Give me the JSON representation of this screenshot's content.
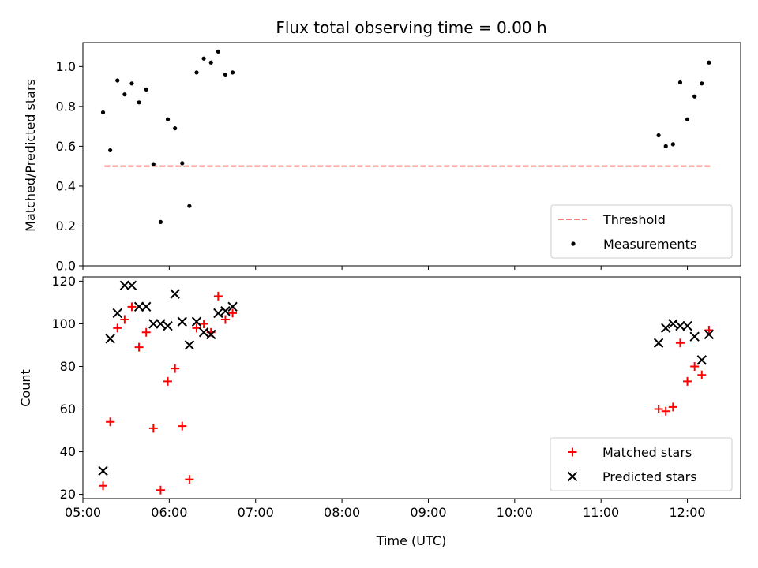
{
  "chart_data": [
    {
      "type": "scatter",
      "title": "Flux total observing time = 0.00 h",
      "xlabel": "",
      "ylabel": "Matched/Predicted stars",
      "ylim": [
        0.0,
        1.12
      ],
      "yticks": [
        0.0,
        0.2,
        0.4,
        0.6,
        0.8,
        1.0
      ],
      "ytick_labels": [
        "0.0",
        "0.2",
        "0.4",
        "0.6",
        "0.8",
        "1.0"
      ],
      "xlim": [
        "05:00",
        "12:37"
      ],
      "legend_location": "lower-right",
      "series": [
        {
          "name": "Threshold",
          "kind": "dashed-line",
          "color": "#ff8080",
          "points": [
            {
              "x": "05:15",
              "y": 0.5
            },
            {
              "x": "12:16",
              "y": 0.5
            }
          ]
        },
        {
          "name": "Measurements",
          "kind": "dot",
          "color": "#000000",
          "points": [
            {
              "x": "05:14",
              "y": 0.77
            },
            {
              "x": "05:19",
              "y": 0.58
            },
            {
              "x": "05:24",
              "y": 0.93
            },
            {
              "x": "05:29",
              "y": 0.86
            },
            {
              "x": "05:34",
              "y": 0.915
            },
            {
              "x": "05:39",
              "y": 0.82
            },
            {
              "x": "05:44",
              "y": 0.885
            },
            {
              "x": "05:49",
              "y": 0.51
            },
            {
              "x": "05:54",
              "y": 0.22
            },
            {
              "x": "05:59",
              "y": 0.735
            },
            {
              "x": "06:04",
              "y": 0.69
            },
            {
              "x": "06:09",
              "y": 0.515
            },
            {
              "x": "06:14",
              "y": 0.3
            },
            {
              "x": "06:19",
              "y": 0.97
            },
            {
              "x": "06:24",
              "y": 1.04
            },
            {
              "x": "06:29",
              "y": 1.02
            },
            {
              "x": "06:34",
              "y": 1.075
            },
            {
              "x": "06:39",
              "y": 0.96
            },
            {
              "x": "06:44",
              "y": 0.97
            },
            {
              "x": "11:40",
              "y": 0.655
            },
            {
              "x": "11:45",
              "y": 0.6
            },
            {
              "x": "11:50",
              "y": 0.61
            },
            {
              "x": "11:55",
              "y": 0.92
            },
            {
              "x": "12:00",
              "y": 0.735
            },
            {
              "x": "12:05",
              "y": 0.85
            },
            {
              "x": "12:10",
              "y": 0.915
            },
            {
              "x": "12:15",
              "y": 1.02
            }
          ]
        }
      ]
    },
    {
      "type": "scatter",
      "title": "",
      "xlabel": "Time (UTC)",
      "ylabel": "Count",
      "ylim": [
        18,
        122
      ],
      "yticks": [
        20,
        40,
        60,
        80,
        100,
        120
      ],
      "ytick_labels": [
        "20",
        "40",
        "60",
        "80",
        "100",
        "120"
      ],
      "xlim": [
        "05:00",
        "12:37"
      ],
      "xticks": [
        "05:00",
        "06:00",
        "07:00",
        "08:00",
        "09:00",
        "10:00",
        "11:00",
        "12:00"
      ],
      "xtick_labels": [
        "05:00",
        "06:00",
        "07:00",
        "08:00",
        "09:00",
        "10:00",
        "11:00",
        "12:00"
      ],
      "legend_location": "lower-right",
      "series": [
        {
          "name": "Matched stars",
          "kind": "plus",
          "color": "#ff0000",
          "points": [
            {
              "x": "05:14",
              "y": 24
            },
            {
              "x": "05:19",
              "y": 54
            },
            {
              "x": "05:24",
              "y": 98
            },
            {
              "x": "05:29",
              "y": 102
            },
            {
              "x": "05:34",
              "y": 108
            },
            {
              "x": "05:39",
              "y": 89
            },
            {
              "x": "05:44",
              "y": 96
            },
            {
              "x": "05:49",
              "y": 51
            },
            {
              "x": "05:54",
              "y": 22
            },
            {
              "x": "05:59",
              "y": 73
            },
            {
              "x": "06:04",
              "y": 79
            },
            {
              "x": "06:09",
              "y": 52
            },
            {
              "x": "06:14",
              "y": 27
            },
            {
              "x": "06:19",
              "y": 98
            },
            {
              "x": "06:24",
              "y": 100
            },
            {
              "x": "06:29",
              "y": 96
            },
            {
              "x": "06:34",
              "y": 113
            },
            {
              "x": "06:39",
              "y": 102
            },
            {
              "x": "06:44",
              "y": 105
            },
            {
              "x": "11:40",
              "y": 60
            },
            {
              "x": "11:45",
              "y": 59
            },
            {
              "x": "11:50",
              "y": 61
            },
            {
              "x": "11:55",
              "y": 91
            },
            {
              "x": "12:00",
              "y": 73
            },
            {
              "x": "12:05",
              "y": 80
            },
            {
              "x": "12:10",
              "y": 76
            },
            {
              "x": "12:15",
              "y": 97
            }
          ]
        },
        {
          "name": "Predicted stars",
          "kind": "cross",
          "color": "#000000",
          "points": [
            {
              "x": "05:14",
              "y": 31
            },
            {
              "x": "05:19",
              "y": 93
            },
            {
              "x": "05:24",
              "y": 105
            },
            {
              "x": "05:29",
              "y": 118
            },
            {
              "x": "05:34",
              "y": 118
            },
            {
              "x": "05:39",
              "y": 108
            },
            {
              "x": "05:44",
              "y": 108
            },
            {
              "x": "05:49",
              "y": 100
            },
            {
              "x": "05:54",
              "y": 100
            },
            {
              "x": "05:59",
              "y": 99
            },
            {
              "x": "06:04",
              "y": 114
            },
            {
              "x": "06:09",
              "y": 101
            },
            {
              "x": "06:14",
              "y": 90
            },
            {
              "x": "06:19",
              "y": 101
            },
            {
              "x": "06:24",
              "y": 96
            },
            {
              "x": "06:29",
              "y": 95
            },
            {
              "x": "06:34",
              "y": 105
            },
            {
              "x": "06:39",
              "y": 106
            },
            {
              "x": "06:44",
              "y": 108
            },
            {
              "x": "11:40",
              "y": 91
            },
            {
              "x": "11:45",
              "y": 98
            },
            {
              "x": "11:50",
              "y": 100
            },
            {
              "x": "11:55",
              "y": 99
            },
            {
              "x": "12:00",
              "y": 99
            },
            {
              "x": "12:05",
              "y": 94
            },
            {
              "x": "12:10",
              "y": 83
            },
            {
              "x": "12:15",
              "y": 95
            }
          ]
        }
      ]
    }
  ]
}
